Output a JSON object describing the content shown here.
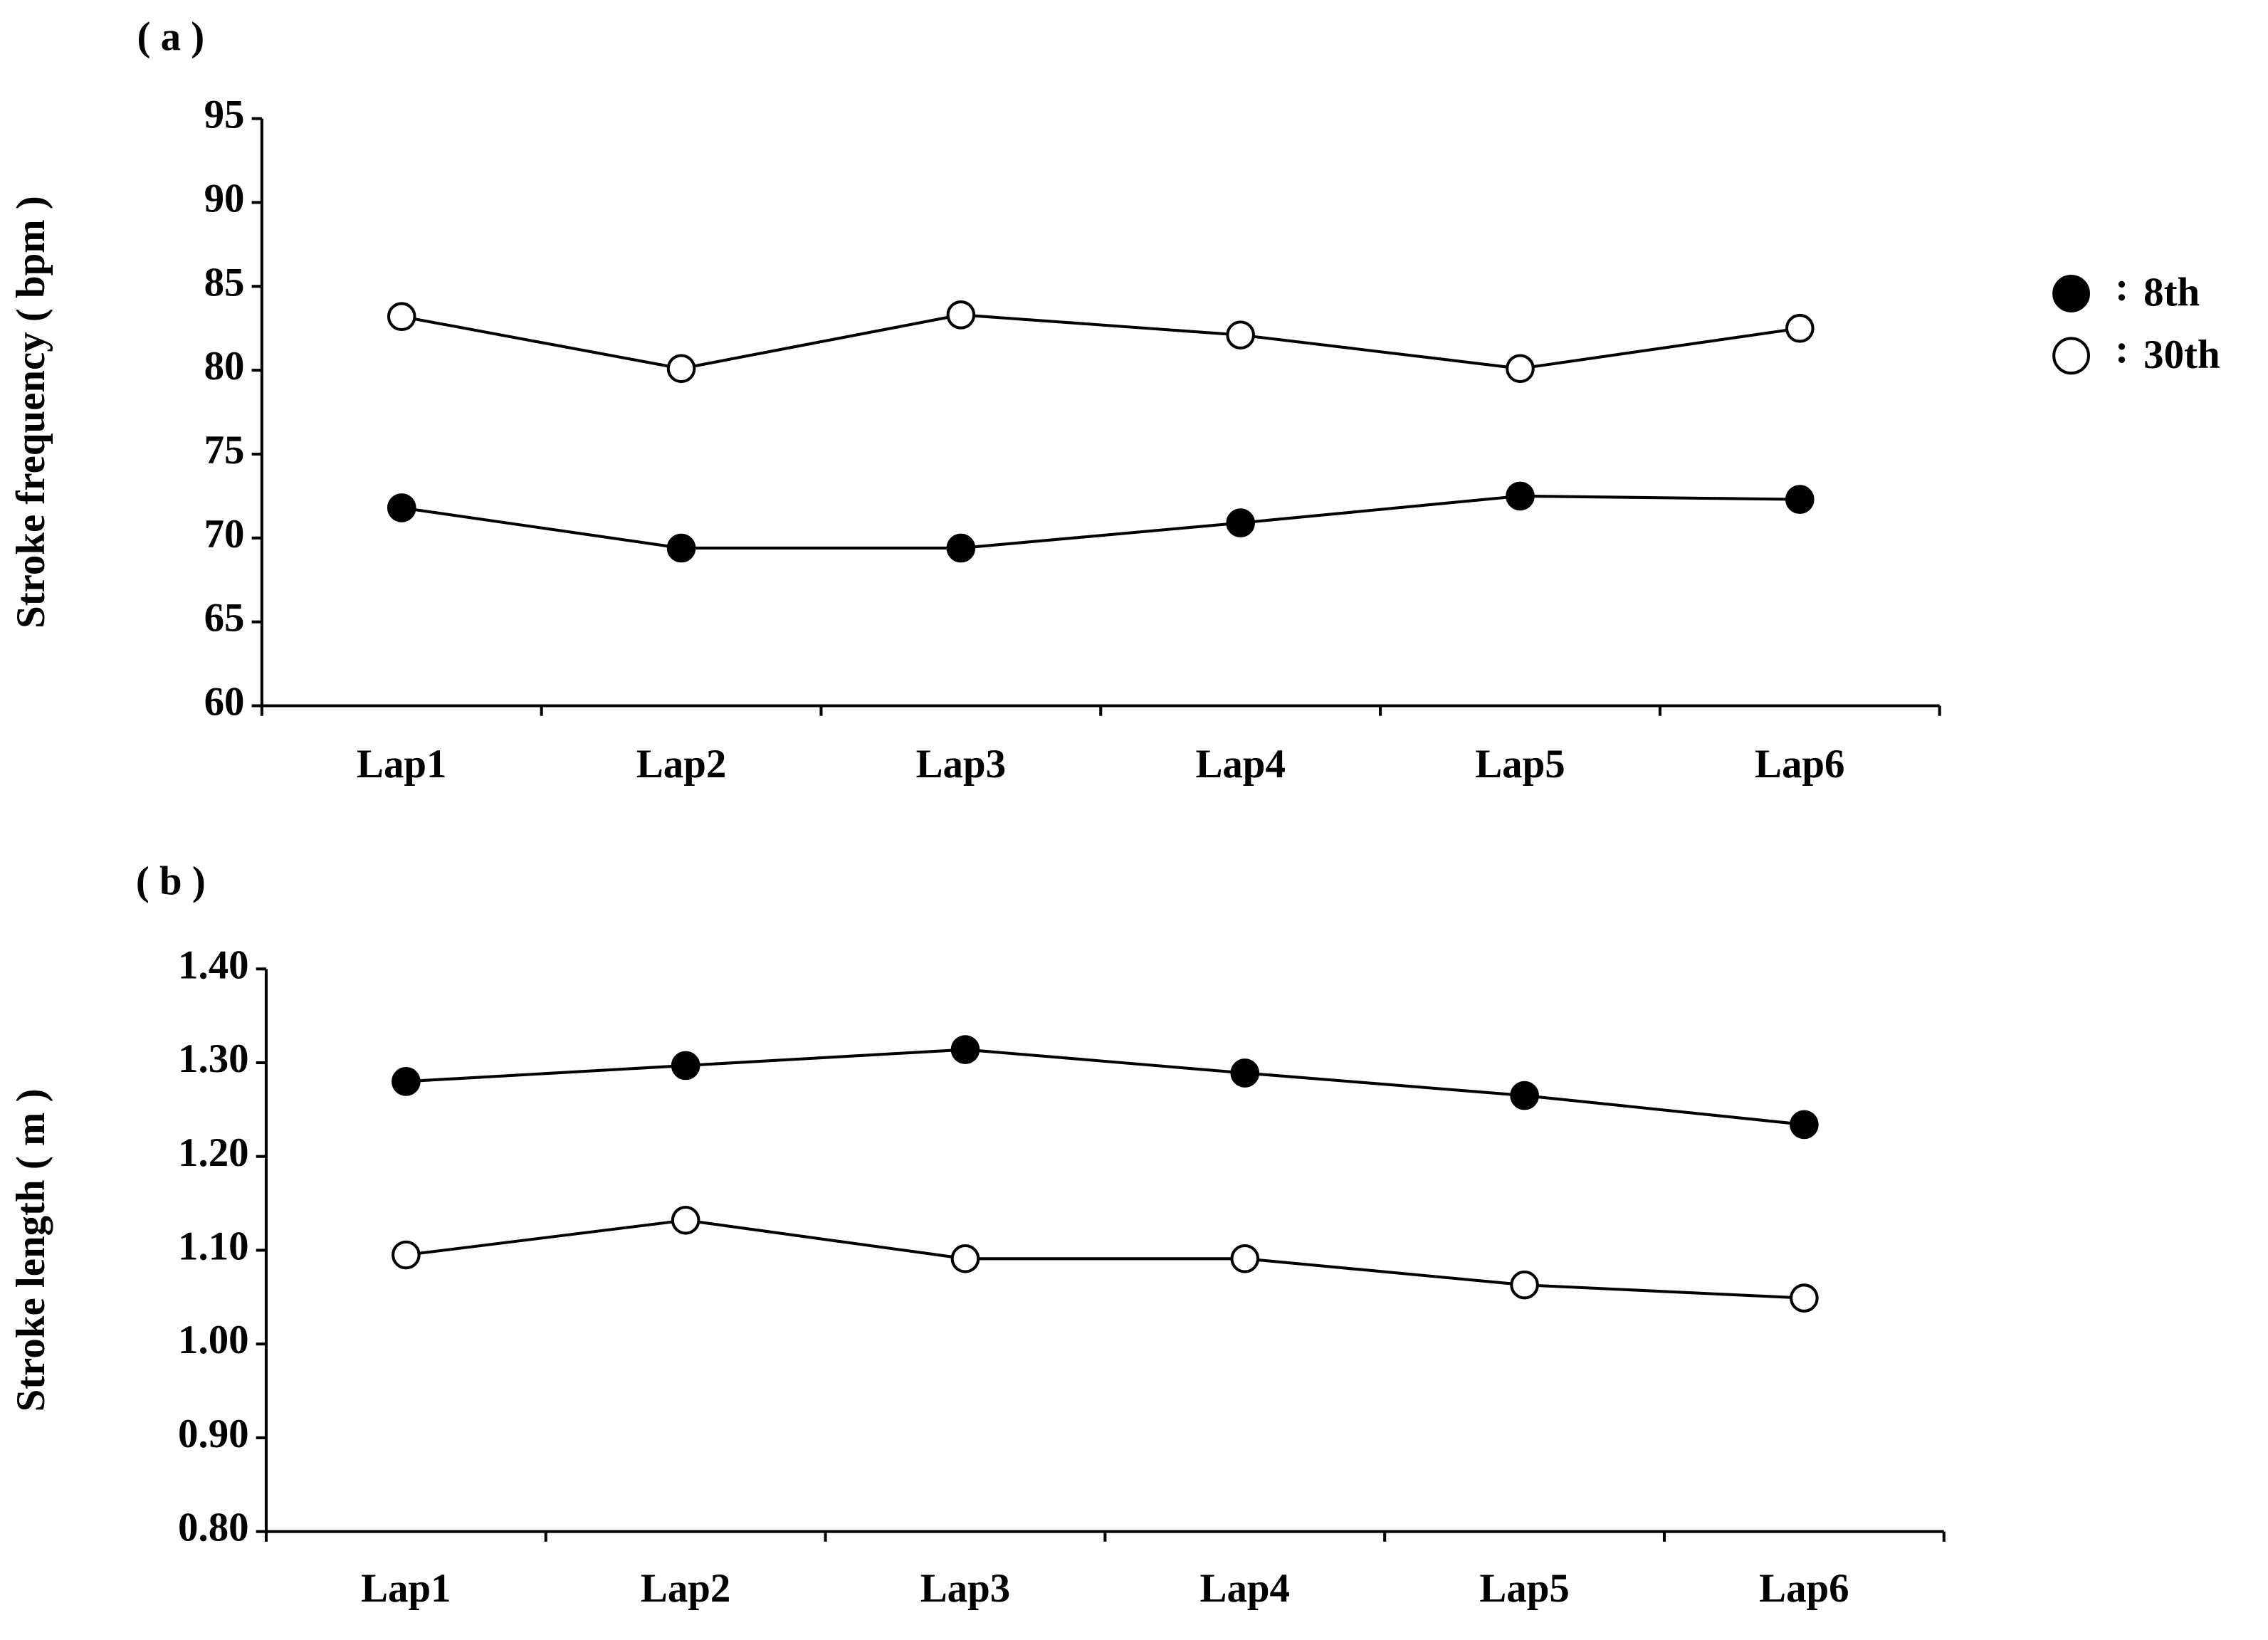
{
  "chart_data": [
    {
      "type": "line",
      "panel_label": "( a )",
      "y_label": "Stroke frequency ( bpm )",
      "categories": [
        "Lap1",
        "Lap2",
        "Lap3",
        "Lap4",
        "Lap5",
        "Lap6"
      ],
      "series": [
        {
          "name": "8th",
          "color": "#000000",
          "values": [
            71.8,
            69.4,
            69.4,
            70.9,
            72.5,
            72.3
          ]
        },
        {
          "name": "30th",
          "color": "#ffffff",
          "values": [
            83.2,
            80.1,
            83.3,
            82.1,
            80.1,
            82.5
          ]
        }
      ],
      "legend_separator": ":",
      "ylim": [
        60,
        95
      ],
      "yticks": [
        60,
        65,
        70,
        75,
        80,
        85,
        90,
        95
      ],
      "grid": false
    },
    {
      "type": "line",
      "panel_label": "( b )",
      "y_label": "Stroke length ( m )",
      "categories": [
        "Lap1",
        "Lap2",
        "Lap3",
        "Lap4",
        "Lap5",
        "Lap6"
      ],
      "series": [
        {
          "name": "8th",
          "color": "#000000",
          "values": [
            1.28,
            1.297,
            1.314,
            1.289,
            1.265,
            1.234
          ]
        },
        {
          "name": "30th",
          "color": "#ffffff",
          "values": [
            1.095,
            1.132,
            1.091,
            1.091,
            1.063,
            1.049
          ]
        }
      ],
      "ylim": [
        0.8,
        1.4
      ],
      "yticks": [
        {
          "value": 0.8,
          "label": "0.80"
        },
        {
          "value": 0.9,
          "label": "0.90"
        },
        {
          "value": 1.0,
          "label": "1.00"
        },
        {
          "value": 1.1,
          "label": "1.10"
        },
        {
          "value": 1.2,
          "label": "1.20"
        },
        {
          "value": 1.3,
          "label": "1.30"
        },
        {
          "value": 1.4,
          "label": "1.40"
        }
      ],
      "grid": false
    }
  ]
}
